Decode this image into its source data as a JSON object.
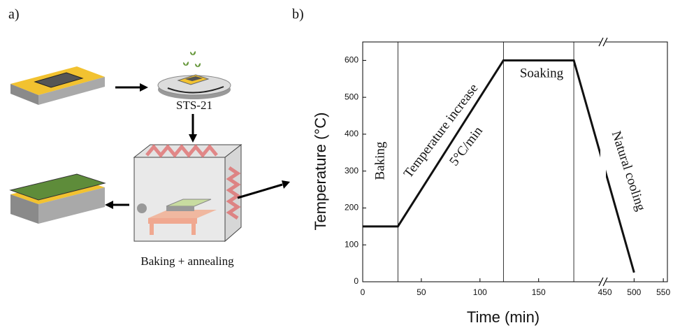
{
  "panel_labels": [
    "a)",
    "b)"
  ],
  "diagram": {
    "labels": [
      "STS-21",
      "Baking + annealing"
    ]
  },
  "chart_data": {
    "type": "line",
    "xlabel": "Time (min)",
    "ylabel": "Temperature (°C)",
    "x": [
      0,
      30,
      120,
      180,
      500
    ],
    "series": [
      {
        "color": "#111111",
        "values": [
          150,
          150,
          600,
          600,
          25
        ]
      }
    ],
    "xlim": [
      0,
      557
    ],
    "xbreak": [
      205,
      447
    ],
    "xticks": [
      0,
      50,
      100,
      150,
      450,
      500,
      550
    ],
    "ylim": [
      0,
      650
    ],
    "yticks": [
      0,
      100,
      200,
      300,
      400,
      500,
      600
    ],
    "phase_lines": [
      30,
      120,
      180
    ],
    "annotations": [
      "Baking",
      "Temperature increase",
      "5°C/min",
      "Soaking",
      "Natural cooling"
    ]
  }
}
